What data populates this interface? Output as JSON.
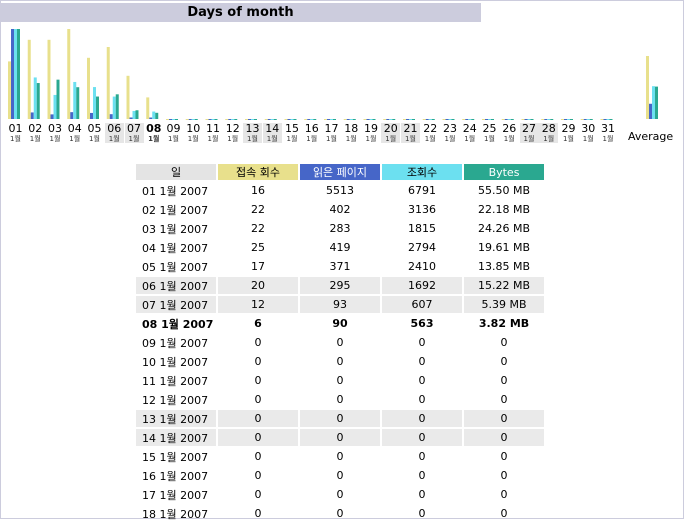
{
  "header": {
    "title": "Days of month"
  },
  "colors": {
    "visits": "#e8e08c",
    "pages": "#4666c8",
    "hits": "#6ce0f0",
    "bandwidth": "#2aa890",
    "header_bg": "#ccccdd",
    "weekend_bg": "#eaeaea"
  },
  "chart": {
    "days": [
      {
        "d": "01",
        "sub": "1월"
      },
      {
        "d": "02",
        "sub": "1월"
      },
      {
        "d": "03",
        "sub": "1월"
      },
      {
        "d": "04",
        "sub": "1월"
      },
      {
        "d": "05",
        "sub": "1월"
      },
      {
        "d": "06",
        "sub": "1월"
      },
      {
        "d": "07",
        "sub": "1월"
      },
      {
        "d": "08",
        "sub": "1월"
      },
      {
        "d": "09",
        "sub": "1월"
      },
      {
        "d": "10",
        "sub": "1월"
      },
      {
        "d": "11",
        "sub": "1월"
      },
      {
        "d": "12",
        "sub": "1월"
      },
      {
        "d": "13",
        "sub": "1월"
      },
      {
        "d": "14",
        "sub": "1월"
      },
      {
        "d": "15",
        "sub": "1월"
      },
      {
        "d": "16",
        "sub": "1월"
      },
      {
        "d": "17",
        "sub": "1월"
      },
      {
        "d": "18",
        "sub": "1월"
      },
      {
        "d": "19",
        "sub": "1월"
      },
      {
        "d": "20",
        "sub": "1월"
      },
      {
        "d": "21",
        "sub": "1월"
      },
      {
        "d": "22",
        "sub": "1월"
      },
      {
        "d": "23",
        "sub": "1월"
      },
      {
        "d": "24",
        "sub": "1월"
      },
      {
        "d": "25",
        "sub": "1월"
      },
      {
        "d": "26",
        "sub": "1월"
      },
      {
        "d": "27",
        "sub": "1월"
      },
      {
        "d": "28",
        "sub": "1월"
      },
      {
        "d": "29",
        "sub": "1월"
      },
      {
        "d": "30",
        "sub": "1월"
      },
      {
        "d": "31",
        "sub": "1월"
      }
    ],
    "weekend_days": [
      "06",
      "07",
      "13",
      "14",
      "20",
      "21",
      "27",
      "28"
    ],
    "today": "08",
    "average_label": "Average"
  },
  "chart_data": {
    "type": "bar",
    "categories": [
      "01",
      "02",
      "03",
      "04",
      "05",
      "06",
      "07",
      "08",
      "09",
      "10",
      "11",
      "12",
      "13",
      "14",
      "15",
      "16",
      "17",
      "18",
      "19",
      "20",
      "21",
      "22",
      "23",
      "24",
      "25",
      "26",
      "27",
      "28",
      "29",
      "30",
      "31"
    ],
    "series": [
      {
        "name": "접속 회수",
        "values": [
          16,
          22,
          22,
          25,
          17,
          20,
          12,
          6,
          0,
          0,
          0,
          0,
          0,
          0,
          0,
          0,
          0,
          0,
          0,
          0,
          0,
          0,
          0,
          0,
          0,
          0,
          0,
          0,
          0,
          0,
          0
        ]
      },
      {
        "name": "읽은 페이지",
        "values": [
          5513,
          402,
          283,
          419,
          371,
          295,
          93,
          90,
          0,
          0,
          0,
          0,
          0,
          0,
          0,
          0,
          0,
          0,
          0,
          0,
          0,
          0,
          0,
          0,
          0,
          0,
          0,
          0,
          0,
          0,
          0
        ]
      },
      {
        "name": "조회수",
        "values": [
          6791,
          3136,
          1815,
          2794,
          2410,
          1692,
          607,
          563,
          0,
          0,
          0,
          0,
          0,
          0,
          0,
          0,
          0,
          0,
          0,
          0,
          0,
          0,
          0,
          0,
          0,
          0,
          0,
          0,
          0,
          0,
          0
        ]
      },
      {
        "name": "Bytes",
        "values": [
          55.5,
          22.18,
          24.26,
          19.61,
          13.85,
          15.22,
          5.39,
          3.82,
          0,
          0,
          0,
          0,
          0,
          0,
          0,
          0,
          0,
          0,
          0,
          0,
          0,
          0,
          0,
          0,
          0,
          0,
          0,
          0,
          0,
          0,
          0
        ]
      }
    ],
    "average": {
      "visits": 17.5,
      "pages": 933,
      "hits": 2476,
      "bytes": 19.98
    },
    "title": "Days of month"
  },
  "table": {
    "headers": [
      "일",
      "접속 회수",
      "읽은 페이지",
      "조회수",
      "Bytes"
    ],
    "rows": [
      {
        "date": "01 1월 2007",
        "visits": "16",
        "pages": "5513",
        "hits": "6791",
        "bytes": "55.50 MB",
        "we": false
      },
      {
        "date": "02 1월 2007",
        "visits": "22",
        "pages": "402",
        "hits": "3136",
        "bytes": "22.18 MB",
        "we": false
      },
      {
        "date": "03 1월 2007",
        "visits": "22",
        "pages": "283",
        "hits": "1815",
        "bytes": "24.26 MB",
        "we": false
      },
      {
        "date": "04 1월 2007",
        "visits": "25",
        "pages": "419",
        "hits": "2794",
        "bytes": "19.61 MB",
        "we": false
      },
      {
        "date": "05 1월 2007",
        "visits": "17",
        "pages": "371",
        "hits": "2410",
        "bytes": "13.85 MB",
        "we": false
      },
      {
        "date": "06 1월 2007",
        "visits": "20",
        "pages": "295",
        "hits": "1692",
        "bytes": "15.22 MB",
        "we": true
      },
      {
        "date": "07 1월 2007",
        "visits": "12",
        "pages": "93",
        "hits": "607",
        "bytes": "5.39 MB",
        "we": true
      },
      {
        "date": "08 1월 2007",
        "visits": "6",
        "pages": "90",
        "hits": "563",
        "bytes": "3.82 MB",
        "we": false,
        "today": true
      },
      {
        "date": "09 1월 2007",
        "visits": "0",
        "pages": "0",
        "hits": "0",
        "bytes": "0",
        "we": false
      },
      {
        "date": "10 1월 2007",
        "visits": "0",
        "pages": "0",
        "hits": "0",
        "bytes": "0",
        "we": false
      },
      {
        "date": "11 1월 2007",
        "visits": "0",
        "pages": "0",
        "hits": "0",
        "bytes": "0",
        "we": false
      },
      {
        "date": "12 1월 2007",
        "visits": "0",
        "pages": "0",
        "hits": "0",
        "bytes": "0",
        "we": false
      },
      {
        "date": "13 1월 2007",
        "visits": "0",
        "pages": "0",
        "hits": "0",
        "bytes": "0",
        "we": true
      },
      {
        "date": "14 1월 2007",
        "visits": "0",
        "pages": "0",
        "hits": "0",
        "bytes": "0",
        "we": true
      },
      {
        "date": "15 1월 2007",
        "visits": "0",
        "pages": "0",
        "hits": "0",
        "bytes": "0",
        "we": false
      },
      {
        "date": "16 1월 2007",
        "visits": "0",
        "pages": "0",
        "hits": "0",
        "bytes": "0",
        "we": false
      },
      {
        "date": "17 1월 2007",
        "visits": "0",
        "pages": "0",
        "hits": "0",
        "bytes": "0",
        "we": false
      },
      {
        "date": "18 1월 2007",
        "visits": "0",
        "pages": "0",
        "hits": "0",
        "bytes": "0",
        "we": false
      }
    ]
  }
}
